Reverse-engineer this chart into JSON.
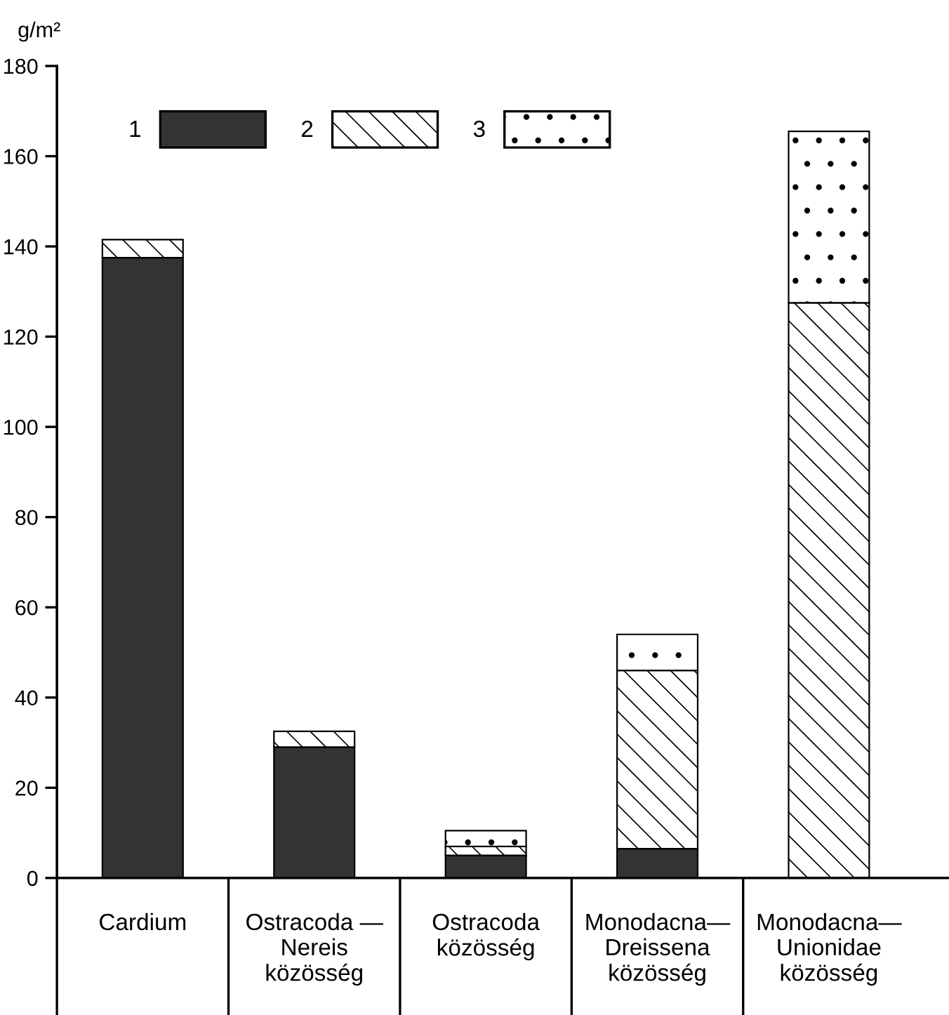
{
  "chart_data": {
    "type": "bar",
    "stacked": true,
    "ylabel": "g/m²",
    "categories": [
      "Cardium",
      "Ostracoda —\nNereis\nközösség",
      "Ostracoda\nközösség",
      "Monodacna—\nDreissena\nközösség",
      "Monodacna—\nUnionidae\nközösség"
    ],
    "series": [
      {
        "name": "1",
        "color": "#333333",
        "values": [
          137.5,
          29,
          5,
          6.5,
          null
        ]
      },
      {
        "name": "2",
        "color": "#000000",
        "values": [
          4,
          3.5,
          2,
          39.5,
          127.5
        ]
      },
      {
        "name": "3",
        "color": "#000000",
        "values": [
          null,
          null,
          3.5,
          8,
          38
        ]
      }
    ],
    "ylim": [
      0,
      180
    ],
    "yticks": [
      0,
      20,
      40,
      60,
      80,
      100,
      120,
      140,
      160,
      180
    ],
    "grid": false,
    "legend": "top"
  }
}
